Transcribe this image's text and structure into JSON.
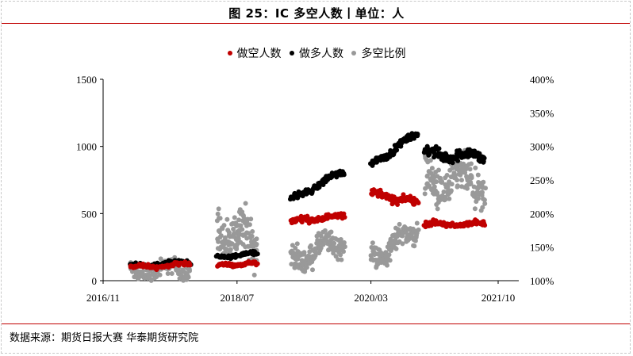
{
  "title": "图 25：IC 多空人数丨单位：人",
  "source": "数据来源：期货日报大赛  华泰期货研究院",
  "legend": [
    {
      "label": "做空人数",
      "color": "#c00000"
    },
    {
      "label": "做多人数",
      "color": "#000000"
    },
    {
      "label": "多空比例",
      "color": "#999999"
    }
  ],
  "chart_data": {
    "type": "scatter",
    "x_ticks": [
      "2016/11",
      "2018/07",
      "2020/03",
      "2021/10"
    ],
    "x_range": [
      "2016/11",
      "2021/10"
    ],
    "y_left_ticks": [
      "0",
      "500",
      "1000",
      "1500"
    ],
    "y_left_range": [
      0,
      1500
    ],
    "y_right_ticks": [
      "100%",
      "150%",
      "200%",
      "250%",
      "300%",
      "350%",
      "400%"
    ],
    "y_right_range": [
      1.0,
      4.0
    ],
    "grid": false,
    "legend_position": "top",
    "series": [
      {
        "name": "做空人数",
        "axis": "left",
        "color": "#c00000",
        "segments": [
          {
            "start": "2017/03",
            "end": "2017/12",
            "points": 70,
            "level_start": 95,
            "level_end": 125,
            "spread": 25
          },
          {
            "start": "2018/04",
            "end": "2018/10",
            "points": 75,
            "level_start": 110,
            "level_end": 130,
            "spread": 18
          },
          {
            "start": "2019/03",
            "end": "2019/11",
            "points": 110,
            "level_start": 440,
            "level_end": 485,
            "spread": 30
          },
          {
            "start": "2020/03",
            "end": "2020/10",
            "points": 95,
            "level_start": 650,
            "level_end": 580,
            "spread": 40
          },
          {
            "start": "2020/11",
            "end": "2021/08",
            "points": 110,
            "level_start": 420,
            "level_end": 420,
            "spread": 30
          }
        ]
      },
      {
        "name": "做多人数",
        "axis": "left",
        "color": "#000000",
        "segments": [
          {
            "start": "2017/03",
            "end": "2017/12",
            "points": 55,
            "level_start": 110,
            "level_end": 140,
            "spread": 25
          },
          {
            "start": "2018/04",
            "end": "2018/10",
            "points": 60,
            "level_start": 170,
            "level_end": 210,
            "spread": 20
          },
          {
            "start": "2019/03",
            "end": "2019/11",
            "points": 110,
            "level_start": 600,
            "level_end": 820,
            "spread": 35
          },
          {
            "start": "2020/03",
            "end": "2020/10",
            "points": 95,
            "level_start": 860,
            "level_end": 1100,
            "spread": 35
          },
          {
            "start": "2020/11",
            "end": "2021/08",
            "points": 120,
            "level_start": 950,
            "level_end": 920,
            "spread": 60
          }
        ]
      },
      {
        "name": "多空比例",
        "axis": "right",
        "color": "#999999",
        "segments": [
          {
            "start": "2017/03",
            "end": "2017/12",
            "points": 110,
            "level_start": 1.1,
            "level_end": 1.2,
            "spread": 0.2
          },
          {
            "start": "2018/04",
            "end": "2018/10",
            "points": 140,
            "level_start": 1.65,
            "level_end": 1.65,
            "spread": 0.5
          },
          {
            "start": "2019/03",
            "end": "2019/11",
            "points": 150,
            "level_start": 1.3,
            "level_end": 1.6,
            "spread": 0.25
          },
          {
            "start": "2020/03",
            "end": "2020/10",
            "points": 130,
            "level_start": 1.3,
            "level_end": 1.8,
            "spread": 0.25
          },
          {
            "start": "2020/11",
            "end": "2021/08",
            "points": 170,
            "level_start": 2.5,
            "level_end": 2.4,
            "spread": 0.45
          }
        ]
      }
    ]
  }
}
